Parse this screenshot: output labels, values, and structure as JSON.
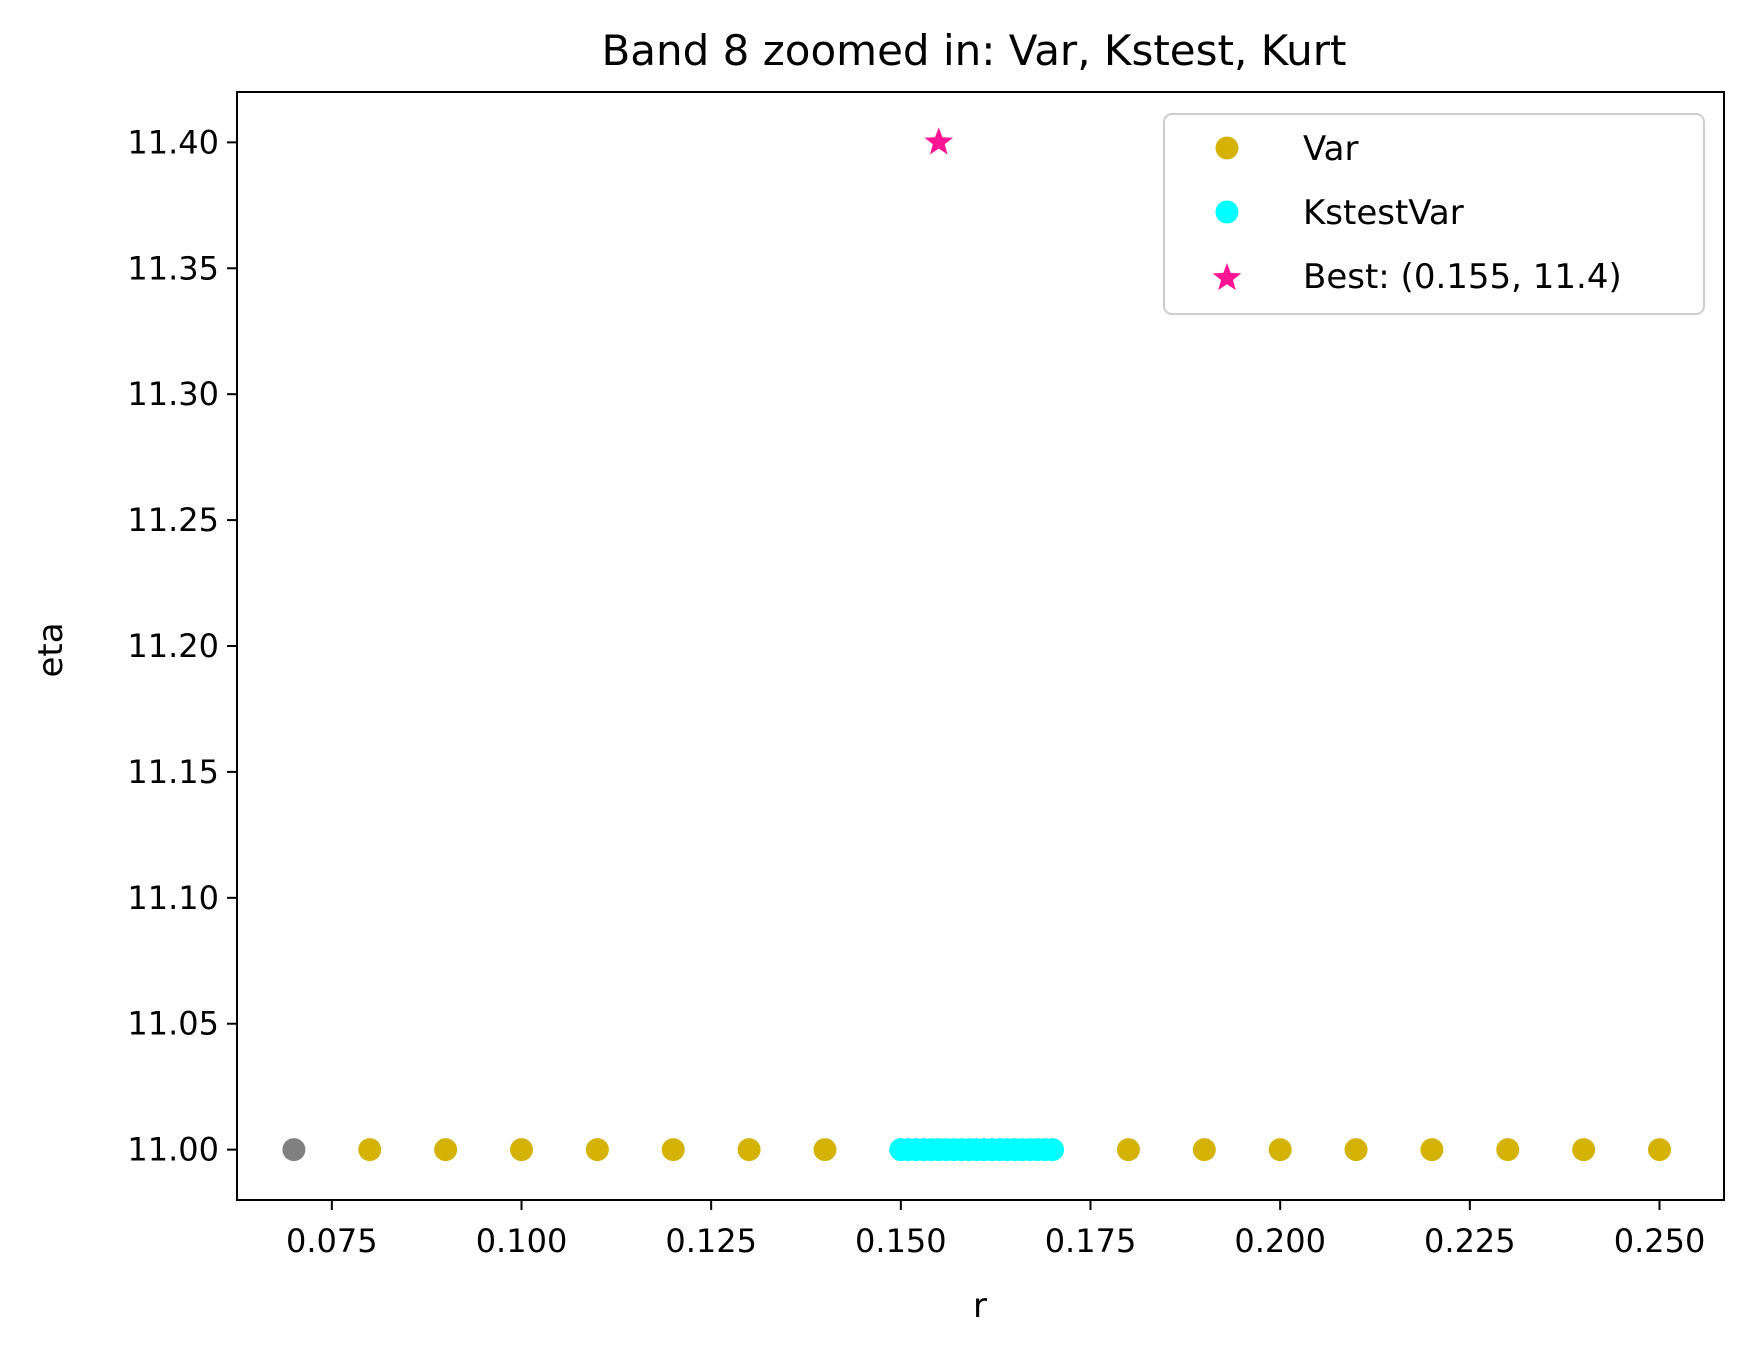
{
  "chart_data": {
    "type": "scatter",
    "title": "Band 8 zoomed in: Var, Kstest, Kurt",
    "xlabel": "r",
    "ylabel": "eta",
    "xlim": [
      0.0625,
      0.2585
    ],
    "ylim": [
      10.98,
      11.42
    ],
    "xticks": [
      0.075,
      0.1,
      0.125,
      0.15,
      0.175,
      0.2,
      0.225,
      0.25
    ],
    "xtick_labels": [
      "0.075",
      "0.100",
      "0.125",
      "0.150",
      "0.175",
      "0.200",
      "0.225",
      "0.250"
    ],
    "yticks": [
      11.0,
      11.05,
      11.1,
      11.15,
      11.2,
      11.25,
      11.3,
      11.35,
      11.4
    ],
    "ytick_labels": [
      "11.00",
      "11.05",
      "11.10",
      "11.15",
      "11.20",
      "11.25",
      "11.30",
      "11.35",
      "11.40"
    ],
    "grid": false,
    "legend_position": "top-right",
    "series": [
      {
        "name": "",
        "marker": "circle",
        "color": "#808080",
        "points": [
          [
            0.07,
            11.0
          ]
        ]
      },
      {
        "name": "Var",
        "marker": "circle",
        "color": "#D4B306",
        "points": [
          [
            0.08,
            11.0
          ],
          [
            0.09,
            11.0
          ],
          [
            0.1,
            11.0
          ],
          [
            0.11,
            11.0
          ],
          [
            0.12,
            11.0
          ],
          [
            0.13,
            11.0
          ],
          [
            0.14,
            11.0
          ],
          [
            0.18,
            11.0
          ],
          [
            0.19,
            11.0
          ],
          [
            0.2,
            11.0
          ],
          [
            0.21,
            11.0
          ],
          [
            0.22,
            11.0
          ],
          [
            0.23,
            11.0
          ],
          [
            0.24,
            11.0
          ],
          [
            0.25,
            11.0
          ]
        ]
      },
      {
        "name": "KstestVar",
        "marker": "circle",
        "color": "#00FFFF",
        "points": [
          [
            0.15,
            11.0
          ],
          [
            0.151,
            11.0
          ],
          [
            0.152,
            11.0
          ],
          [
            0.153,
            11.0
          ],
          [
            0.154,
            11.0
          ],
          [
            0.155,
            11.0
          ],
          [
            0.156,
            11.0
          ],
          [
            0.157,
            11.0
          ],
          [
            0.158,
            11.0
          ],
          [
            0.159,
            11.0
          ],
          [
            0.16,
            11.0
          ],
          [
            0.161,
            11.0
          ],
          [
            0.162,
            11.0
          ],
          [
            0.163,
            11.0
          ],
          [
            0.164,
            11.0
          ],
          [
            0.165,
            11.0
          ],
          [
            0.166,
            11.0
          ],
          [
            0.167,
            11.0
          ],
          [
            0.168,
            11.0
          ],
          [
            0.169,
            11.0
          ],
          [
            0.17,
            11.0
          ]
        ]
      },
      {
        "name": "Best: (0.155, 11.4)",
        "marker": "star",
        "color": "#FF1493",
        "points": [
          [
            0.155,
            11.4
          ]
        ]
      }
    ],
    "legend": [
      "Var",
      "KstestVar",
      "Best: (0.155, 11.4)"
    ]
  }
}
